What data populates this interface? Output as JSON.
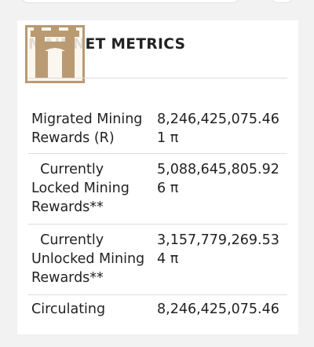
{
  "section": {
    "title": "MAINNET METRICS"
  },
  "metrics": [
    {
      "label": "Migrated Mining Rewards (R)",
      "value": "8,246,425,075.461 π"
    },
    {
      "label": "  Currently Locked Mining Rewards**",
      "value": "5,088,645,805.926 π"
    },
    {
      "label": "  Currently Unlocked Mining Rewards**",
      "value": "3,157,779,269.534 π"
    },
    {
      "label": "Circulating",
      "value": "8,246,425,075.46"
    }
  ],
  "colors": {
    "logo_border": "#b99a72",
    "divider": "#dddddd",
    "background": "#f2f2f2"
  },
  "icons": {
    "logo": "castle-gate-icon"
  }
}
